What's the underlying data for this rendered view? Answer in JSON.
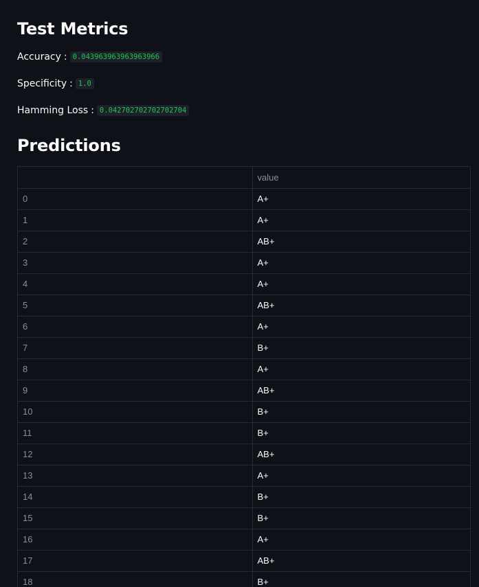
{
  "headings": {
    "metrics": "Test Metrics",
    "predictions": "Predictions"
  },
  "metrics": {
    "accuracy": {
      "label": "Accuracy",
      "value": "0.043963963963963966"
    },
    "specificity": {
      "label": "Specificity",
      "value": "1.0"
    },
    "hamming_loss": {
      "label": "Hamming Loss",
      "value": "0.042702702702702704"
    }
  },
  "table": {
    "columns": [
      "",
      "value"
    ],
    "rows": [
      {
        "index": "0",
        "value": "A+"
      },
      {
        "index": "1",
        "value": "A+"
      },
      {
        "index": "2",
        "value": "AB+"
      },
      {
        "index": "3",
        "value": "A+"
      },
      {
        "index": "4",
        "value": "A+"
      },
      {
        "index": "5",
        "value": "AB+"
      },
      {
        "index": "6",
        "value": "A+"
      },
      {
        "index": "7",
        "value": "B+"
      },
      {
        "index": "8",
        "value": "A+"
      },
      {
        "index": "9",
        "value": "AB+"
      },
      {
        "index": "10",
        "value": "B+"
      },
      {
        "index": "11",
        "value": "B+"
      },
      {
        "index": "12",
        "value": "AB+"
      },
      {
        "index": "13",
        "value": "A+"
      },
      {
        "index": "14",
        "value": "B+"
      },
      {
        "index": "15",
        "value": "B+"
      },
      {
        "index": "16",
        "value": "A+"
      },
      {
        "index": "17",
        "value": "AB+"
      },
      {
        "index": "18",
        "value": "B+"
      }
    ]
  },
  "colors": {
    "background": "#0e1117",
    "code_text": "#21c354",
    "code_bg": "#1e2129",
    "border": "#262a33"
  }
}
